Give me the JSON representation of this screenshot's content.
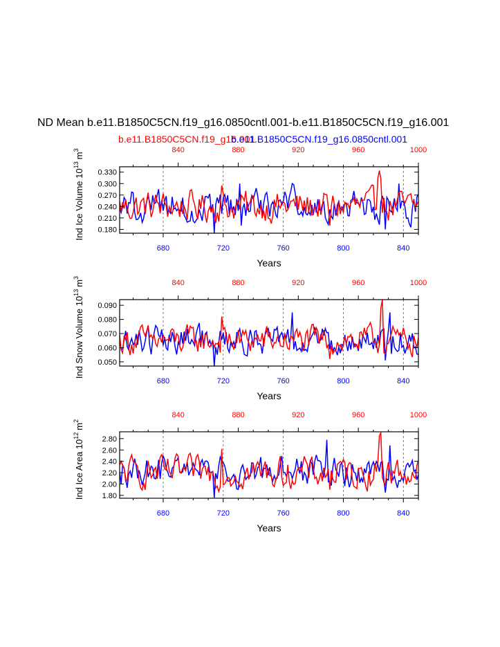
{
  "title": "ND Mean b.e11.B1850C5CN.f19_g16.0850cntl.001-b.e11.B1850C5CN.f19_g16.001",
  "legend": {
    "red_label": "b.e11.B1850C5CN.f19_g16.001",
    "blue_label": "b.e11.B1850C5CN.f19_g16.0850cntl.001"
  },
  "colors": {
    "red": "#ff0000",
    "blue": "#0000ff",
    "axis": "#000000",
    "grid": "#555555"
  },
  "chart_data": [
    {
      "type": "line",
      "ylabel": "Ind Ice Volume",
      "yunit_base": "10",
      "yunit_exp": "13",
      "yunit_sym": "m",
      "yunit_sym_exp": "3",
      "xlabel": "Years",
      "ylim": [
        0.17,
        0.344
      ],
      "yticks": [
        0.18,
        0.21,
        0.24,
        0.27,
        0.3,
        0.33
      ],
      "ytick_labels": [
        "0.180",
        "0.210",
        "0.240",
        "0.270",
        "0.300",
        "0.330"
      ],
      "xlim_blue": [
        651,
        850
      ],
      "xticks_blue": [
        680,
        720,
        760,
        800,
        840
      ],
      "xtick_labels_blue": [
        "680",
        "720",
        "760",
        "800",
        "840"
      ],
      "xlim_red": [
        801,
        1000
      ],
      "xticks_red": [
        840,
        880,
        920,
        960,
        1000
      ],
      "xtick_labels_red": [
        "840",
        "880",
        "920",
        "960",
        "1000"
      ],
      "grid_x": [
        680,
        720,
        760,
        800,
        840
      ],
      "series": [
        {
          "name": "b.e11.B1850C5CN.f19_g16.001",
          "color": "red",
          "axis": "top"
        },
        {
          "name": "b.e11.B1850C5CN.f19_g16.0850cntl.001",
          "color": "blue",
          "axis": "bottom"
        }
      ],
      "specials": {
        "red": [
          [
            974,
            0.334
          ],
          [
            975,
            0.312
          ],
          [
            973,
            0.315
          ],
          [
            941,
            0.19
          ],
          [
            869,
            0.295
          ]
        ],
        "blue": [
          [
            714,
            0.17
          ],
          [
            731,
            0.3
          ],
          [
            766,
            0.3
          ],
          [
            837,
            0.3
          ],
          [
            828,
            0.18
          ]
        ]
      }
    },
    {
      "type": "line",
      "ylabel": "Ind Snow Volume",
      "yunit_base": "10",
      "yunit_exp": "13",
      "yunit_sym": "m",
      "yunit_sym_exp": "3",
      "xlabel": "Years",
      "ylim": [
        0.047,
        0.094
      ],
      "yticks": [
        0.05,
        0.06,
        0.07,
        0.08,
        0.09
      ],
      "ytick_labels": [
        "0.050",
        "0.060",
        "0.070",
        "0.080",
        "0.090"
      ],
      "xlim_blue": [
        651,
        850
      ],
      "xticks_blue": [
        680,
        720,
        760,
        800,
        840
      ],
      "xtick_labels_blue": [
        "680",
        "720",
        "760",
        "800",
        "840"
      ],
      "xlim_red": [
        801,
        1000
      ],
      "xticks_red": [
        840,
        880,
        920,
        960,
        1000
      ],
      "xtick_labels_red": [
        "840",
        "880",
        "920",
        "960",
        "1000"
      ],
      "grid_x": [
        680,
        720,
        760,
        800,
        840
      ],
      "series": [
        {
          "name": "b.e11.B1850C5CN.f19_g16.001",
          "color": "red",
          "axis": "top"
        },
        {
          "name": "b.e11.B1850C5CN.f19_g16.0850cntl.001",
          "color": "blue",
          "axis": "bottom"
        }
      ],
      "specials": {
        "red": [
          [
            976,
            0.094
          ],
          [
            975,
            0.088
          ],
          [
            941,
            0.052
          ],
          [
            869,
            0.082
          ]
        ],
        "blue": [
          [
            714,
            0.047
          ],
          [
            766,
            0.085
          ],
          [
            831,
            0.085
          ],
          [
            828,
            0.051
          ]
        ]
      }
    },
    {
      "type": "line",
      "ylabel": "Ind Ice Area",
      "yunit_base": "10",
      "yunit_exp": "12",
      "yunit_sym": "m",
      "yunit_sym_exp": "2",
      "xlabel": "Years",
      "ylim": [
        1.75,
        2.92
      ],
      "yticks": [
        1.8,
        2.0,
        2.2,
        2.4,
        2.6,
        2.8
      ],
      "ytick_labels": [
        "1.80",
        "2.00",
        "2.20",
        "2.40",
        "2.60",
        "2.80"
      ],
      "xlim_blue": [
        651,
        850
      ],
      "xticks_blue": [
        680,
        720,
        760,
        800,
        840
      ],
      "xtick_labels_blue": [
        "680",
        "720",
        "760",
        "800",
        "840"
      ],
      "xlim_red": [
        801,
        1000
      ],
      "xticks_red": [
        840,
        880,
        920,
        960,
        1000
      ],
      "xtick_labels_red": [
        "840",
        "880",
        "920",
        "960",
        "1000"
      ],
      "grid_x": [
        680,
        720,
        760,
        800,
        840
      ],
      "series": [
        {
          "name": "b.e11.B1850C5CN.f19_g16.001",
          "color": "red",
          "axis": "top"
        },
        {
          "name": "b.e11.B1850C5CN.f19_g16.0850cntl.001",
          "color": "blue",
          "axis": "bottom"
        }
      ],
      "specials": {
        "red": [
          [
            975,
            2.9
          ],
          [
            974,
            2.85
          ],
          [
            941,
            1.9
          ],
          [
            869,
            2.62
          ]
        ],
        "blue": [
          [
            714,
            1.76
          ],
          [
            789,
            2.78
          ],
          [
            831,
            2.68
          ],
          [
            828,
            1.85
          ]
        ]
      }
    }
  ]
}
